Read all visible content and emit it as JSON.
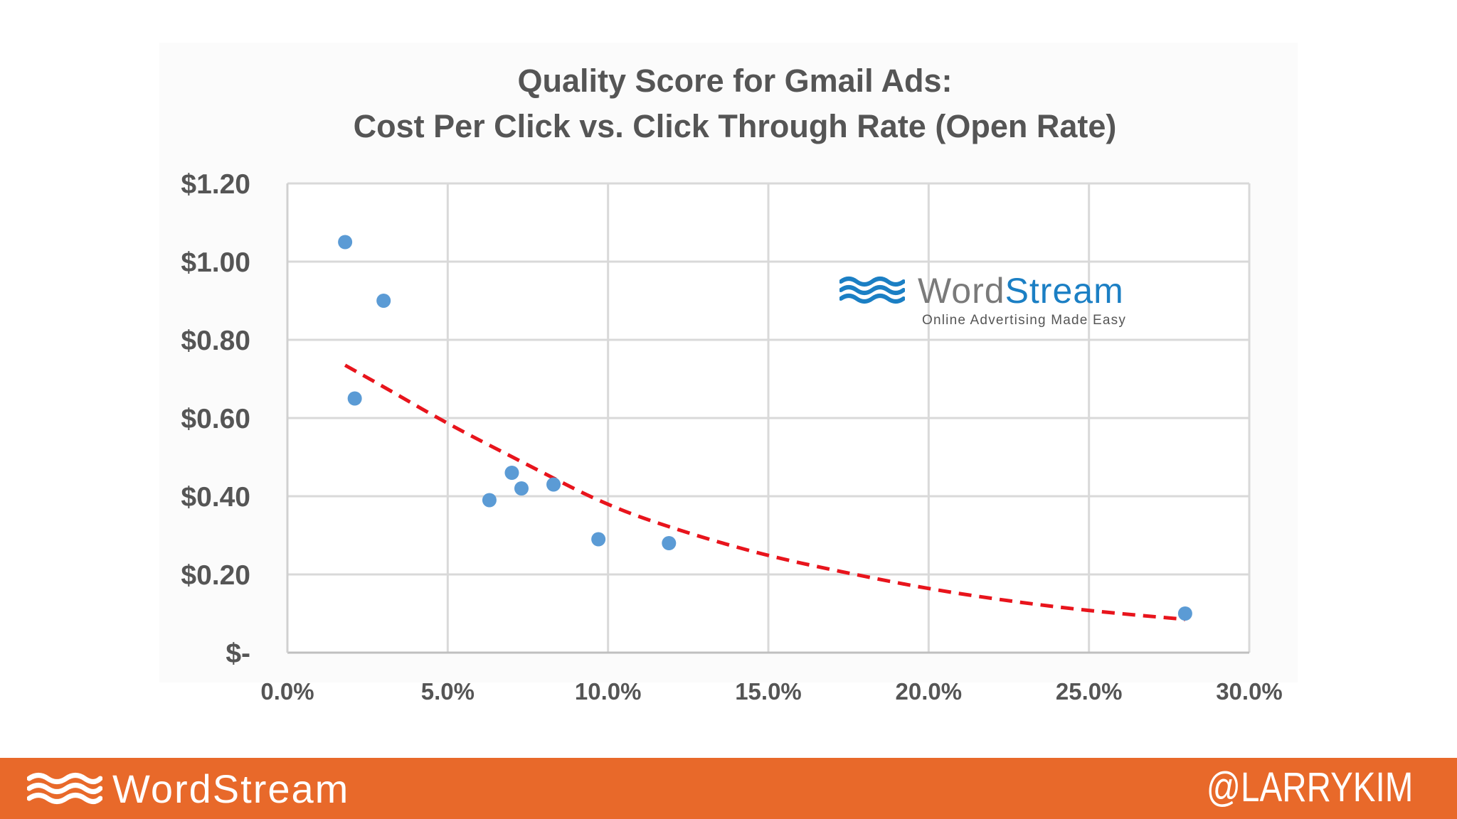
{
  "chart_data": {
    "type": "scatter",
    "title_lines": [
      "Quality Score for Gmail Ads:",
      "Cost Per Click vs. Click Through Rate (Open Rate)"
    ],
    "xlabel": "",
    "ylabel": "",
    "xlim": [
      0,
      30
    ],
    "ylim": [
      0,
      1.2
    ],
    "x_ticks": [
      {
        "value": 0,
        "label": "0.0%"
      },
      {
        "value": 5,
        "label": "5.0%"
      },
      {
        "value": 10,
        "label": "10.0%"
      },
      {
        "value": 15,
        "label": "15.0%"
      },
      {
        "value": 20,
        "label": "20.0%"
      },
      {
        "value": 25,
        "label": "25.0%"
      },
      {
        "value": 30,
        "label": "30.0%"
      }
    ],
    "y_ticks": [
      {
        "value": 0,
        "label": "$-"
      },
      {
        "value": 0.2,
        "label": "$0.20"
      },
      {
        "value": 0.4,
        "label": "$0.40"
      },
      {
        "value": 0.6,
        "label": "$0.60"
      },
      {
        "value": 0.8,
        "label": "$0.80"
      },
      {
        "value": 1.0,
        "label": "$1.00"
      },
      {
        "value": 1.2,
        "label": "$1.20"
      }
    ],
    "grid": true,
    "points": [
      {
        "x": 1.8,
        "y": 1.05
      },
      {
        "x": 3.0,
        "y": 0.9
      },
      {
        "x": 2.1,
        "y": 0.65
      },
      {
        "x": 6.3,
        "y": 0.39
      },
      {
        "x": 7.0,
        "y": 0.46
      },
      {
        "x": 7.3,
        "y": 0.42
      },
      {
        "x": 8.3,
        "y": 0.43
      },
      {
        "x": 9.7,
        "y": 0.29
      },
      {
        "x": 11.9,
        "y": 0.28
      },
      {
        "x": 28.0,
        "y": 0.1
      }
    ],
    "trendline": {
      "style": "dashed",
      "color": "#e8141c",
      "points": [
        {
          "x": 1.8,
          "y": 0.735
        },
        {
          "x": 3,
          "y": 0.68
        },
        {
          "x": 5,
          "y": 0.585
        },
        {
          "x": 7.5,
          "y": 0.48
        },
        {
          "x": 10,
          "y": 0.375
        },
        {
          "x": 12.5,
          "y": 0.305
        },
        {
          "x": 15,
          "y": 0.247
        },
        {
          "x": 17.5,
          "y": 0.203
        },
        {
          "x": 20,
          "y": 0.163
        },
        {
          "x": 22.5,
          "y": 0.132
        },
        {
          "x": 25,
          "y": 0.107
        },
        {
          "x": 28,
          "y": 0.085
        }
      ]
    },
    "point_color": "#5b9bd5",
    "grid_color": "#d9d9d9"
  },
  "watermark": {
    "brand_part1": "Word",
    "brand_part2": "Stream",
    "tagline": "Online Advertising Made Easy",
    "icon": "wordstream-waves-icon"
  },
  "footer": {
    "brand": "WordStream",
    "handle": "@LARRYKIM",
    "background": "#e8692a",
    "icon": "wordstream-waves-icon"
  }
}
